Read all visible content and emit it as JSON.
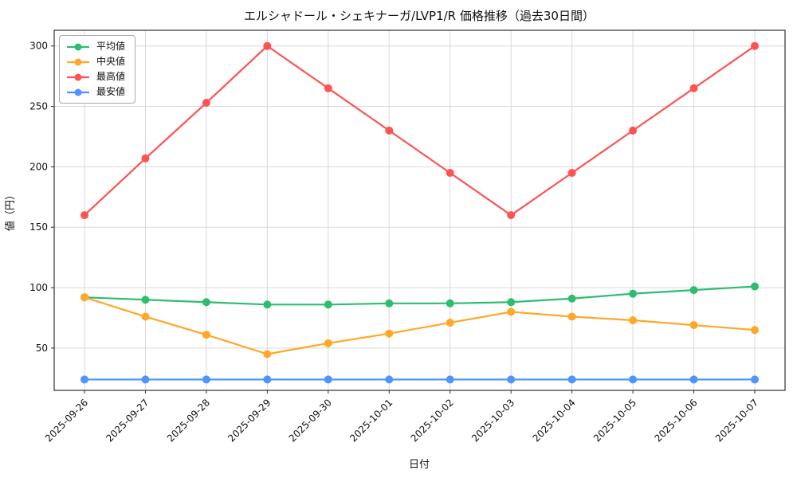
{
  "chart_data": {
    "type": "line",
    "title": "エルシャドール・シェキナーガ/LVP1/R 価格推移（過去30日間）",
    "xlabel": "日付",
    "ylabel": "値（円）",
    "x": [
      "2025-09-26",
      "2025-09-27",
      "2025-09-28",
      "2025-09-29",
      "2025-09-30",
      "2025-10-01",
      "2025-10-02",
      "2025-10-03",
      "2025-10-04",
      "2025-10-05",
      "2025-10-06",
      "2025-10-07"
    ],
    "yticks": [
      50,
      100,
      150,
      200,
      250,
      300
    ],
    "ylim": [
      15,
      313
    ],
    "grid": true,
    "legend_position": "upper-left",
    "series": [
      {
        "name": "平均値",
        "color": "#2ebd6f",
        "values": [
          92,
          90,
          88,
          86,
          86,
          87,
          87,
          88,
          91,
          95,
          98,
          101
        ]
      },
      {
        "name": "中央値",
        "color": "#ffa726",
        "values": [
          92,
          76,
          61,
          45,
          54,
          62,
          71,
          80,
          76,
          73,
          69,
          65
        ]
      },
      {
        "name": "最高値",
        "color": "#ff5252",
        "values": [
          160,
          207,
          253,
          300,
          265,
          230,
          195,
          160,
          195,
          230,
          265,
          300
        ]
      },
      {
        "name": "最安値",
        "color": "#4d94ff",
        "values": [
          24,
          24,
          24,
          24,
          24,
          24,
          24,
          24,
          24,
          24,
          24,
          24
        ]
      }
    ]
  }
}
